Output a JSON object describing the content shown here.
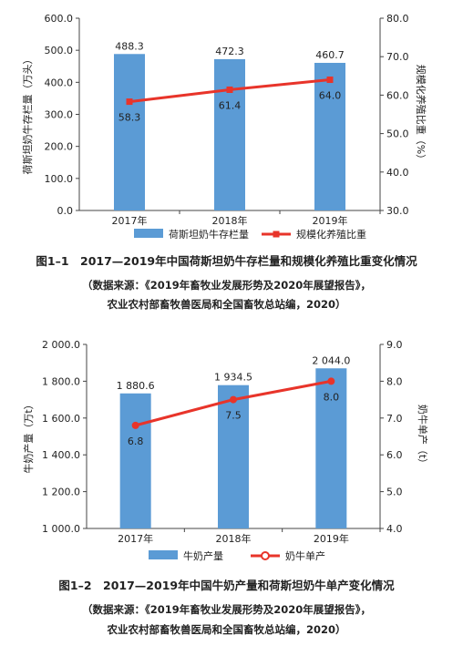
{
  "colors": {
    "bar": "#5b9bd5",
    "line": "#e8342a",
    "axis": "#444444"
  },
  "figure1": {
    "title": "图1–1　2017—2019年中国荷斯坦奶牛存栏量和规模化养殖比重变化情况",
    "source_line1": "（数据来源：《2019年畜牧业发展形势及2020年展望报告》，",
    "source_line2": "农业农村部畜牧兽医局和全国畜牧总站编，2020）",
    "chart_data": {
      "type": "bar",
      "categories": [
        "2017年",
        "2018年",
        "2019年"
      ],
      "series": [
        {
          "name": "荷斯坦奶牛存栏量",
          "type": "bar",
          "axis": "left",
          "values": [
            488.3,
            472.3,
            460.7
          ],
          "labels": [
            "488.3",
            "472.3",
            "460.7"
          ]
        },
        {
          "name": "规模化养殖比重",
          "type": "line",
          "axis": "right",
          "values": [
            58.3,
            61.4,
            64.0
          ],
          "labels": [
            "58.3",
            "61.4",
            "64.0"
          ]
        }
      ],
      "ylabel": "荷斯坦奶牛存栏量（万头）",
      "y2label": "规模化养殖比重（%）",
      "ylim": [
        0,
        600
      ],
      "y2lim": [
        30,
        80
      ],
      "yticks": [
        "0.0",
        "100.0",
        "200.0",
        "300.0",
        "400.0",
        "500.0",
        "600.0"
      ],
      "y2ticks": [
        "30.0",
        "40.0",
        "50.0",
        "60.0",
        "70.0",
        "80.0"
      ],
      "legend_position": "bottom",
      "grid": false
    }
  },
  "figure2": {
    "title": "图1–2　2017—2019年中国牛奶产量和荷斯坦奶牛单产变化情况",
    "source_line1": "（数据来源：《2019年畜牧业发展形势及2020年展望报告》，",
    "source_line2": "农业农村部畜牧兽医局和全国畜牧总站编，2020）",
    "chart_data": {
      "type": "bar",
      "categories": [
        "2017年",
        "2018年",
        "2019年"
      ],
      "series": [
        {
          "name": "牛奶产量",
          "type": "bar",
          "axis": "left",
          "values": [
            1880.6,
            1934.5,
            2044.0
          ],
          "labels": [
            "1 880.6",
            "1 934.5",
            "2 044.0"
          ]
        },
        {
          "name": "奶牛单产",
          "type": "line",
          "axis": "right",
          "values": [
            6.8,
            7.5,
            8.0
          ],
          "labels": [
            "6.8",
            "7.5",
            "8.0"
          ]
        }
      ],
      "ylabel": "牛奶产量（万t）",
      "y2label": "奶牛单产（t）",
      "ylim": [
        1000,
        2200
      ],
      "y2lim": [
        4,
        9
      ],
      "yticks": [
        "1 000.0",
        "1 200.0",
        "1 400.0",
        "1 600.0",
        "1 800.0",
        "2 000.0"
      ],
      "y2ticks": [
        "4.0",
        "5.0",
        "6.0",
        "7.0",
        "8.0",
        "9.0"
      ],
      "legend_position": "bottom",
      "grid": false
    }
  }
}
